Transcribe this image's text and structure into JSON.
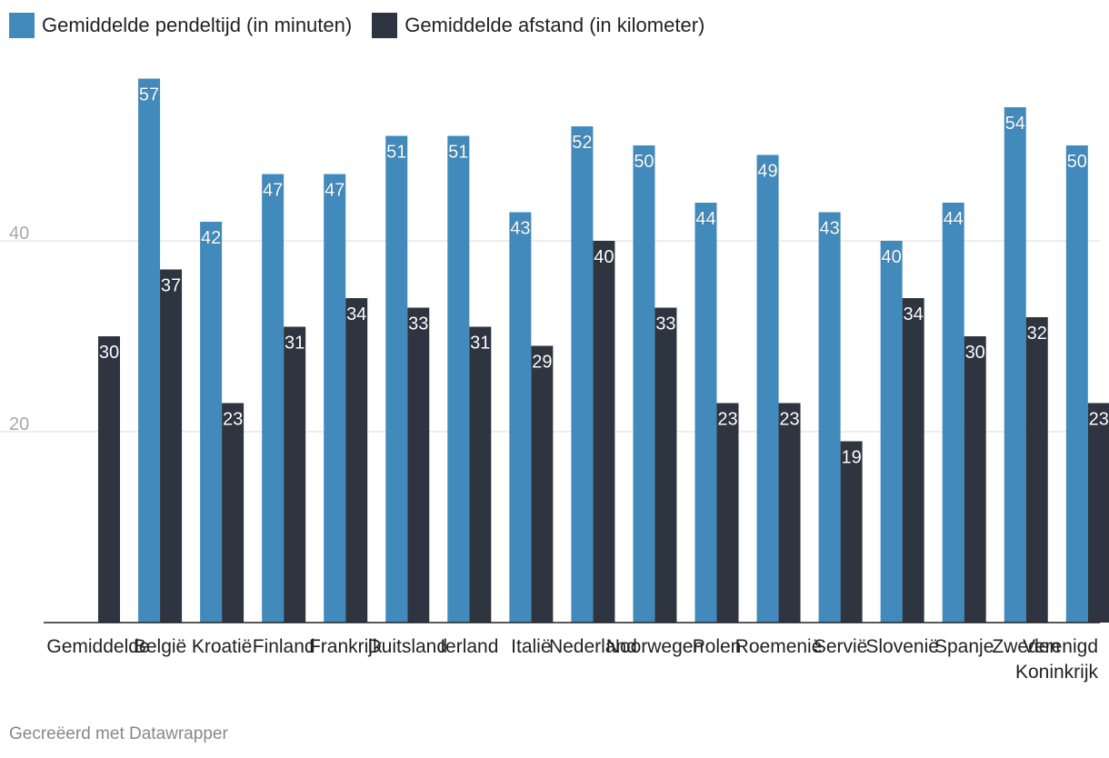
{
  "legend": {
    "series_a_label": "Gemiddelde pendeltijd (in minuten)",
    "series_b_label": "Gemiddelde afstand (in kilometer)"
  },
  "footer": {
    "credit": "Gecreëerd met Datawrapper"
  },
  "colors": {
    "series_a": "#428abb",
    "series_b": "#2e3440",
    "gridline": "#dddddd",
    "baseline": "#222222",
    "axis_label": "#a8a8a8",
    "category_label": "#222222",
    "value_label": "#ffffff"
  },
  "chart_data": {
    "type": "bar",
    "title": "",
    "xlabel": "",
    "ylabel": "",
    "ylim": [
      0,
      60
    ],
    "yticks": [
      20,
      40
    ],
    "grid": true,
    "legend_position": "top-left",
    "categories": [
      [
        "Gemiddelde"
      ],
      [
        "België"
      ],
      [
        "Kroatië"
      ],
      [
        "Finland"
      ],
      [
        "Frankrijk"
      ],
      [
        "Duitsland"
      ],
      [
        "Ierland"
      ],
      [
        "Italië"
      ],
      [
        "Nederland"
      ],
      [
        "Noorwegen"
      ],
      [
        "Polen"
      ],
      [
        "Roemenië"
      ],
      [
        "Servië"
      ],
      [
        "Slovenië"
      ],
      [
        "Spanje"
      ],
      [
        "Zweden"
      ],
      [
        "Verenigd",
        "Koninkrijk"
      ]
    ],
    "series": [
      {
        "name": "Gemiddelde pendeltijd (in minuten)",
        "values": [
          null,
          57,
          42,
          47,
          47,
          51,
          51,
          43,
          52,
          50,
          44,
          49,
          43,
          40,
          44,
          54,
          50
        ]
      },
      {
        "name": "Gemiddelde afstand (in kilometer)",
        "values": [
          30,
          37,
          23,
          31,
          34,
          33,
          31,
          29,
          40,
          33,
          23,
          23,
          19,
          34,
          30,
          32,
          23
        ]
      }
    ]
  }
}
